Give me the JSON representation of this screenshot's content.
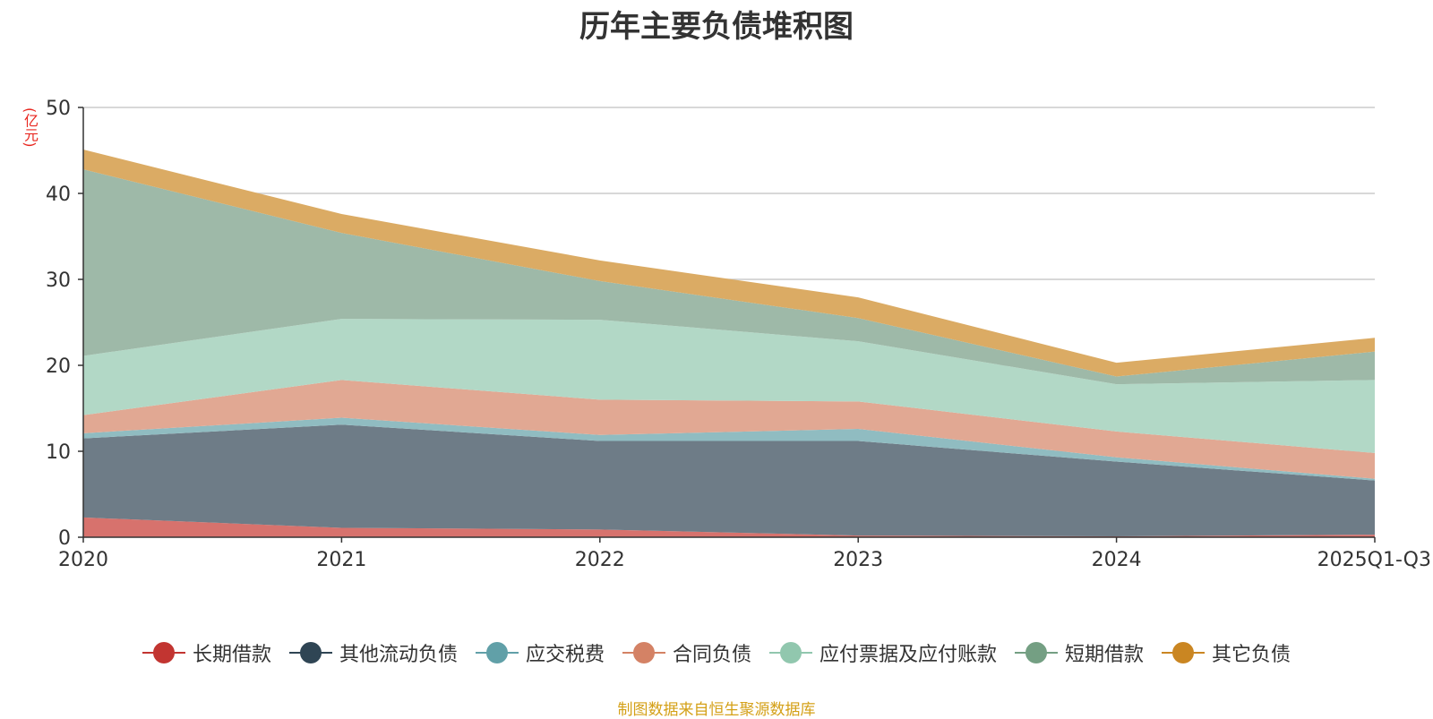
{
  "chart_data": {
    "type": "area",
    "stacked": true,
    "title": "历年主要负债堆积图",
    "ylabel": "(亿元)",
    "xlabel": "",
    "ylim": [
      0,
      50
    ],
    "yticks": [
      0,
      10,
      20,
      30,
      40,
      50
    ],
    "categories": [
      "2020",
      "2021",
      "2022",
      "2023",
      "2024",
      "2025Q1-Q3"
    ],
    "series": [
      {
        "name": "长期借款",
        "color": "#c23531",
        "fill": "#d7726d",
        "values": [
          2.3,
          1.1,
          0.9,
          0.2,
          0.1,
          0.3
        ]
      },
      {
        "name": "其他流动负债",
        "color": "#2f4554",
        "fill": "#6e7c87",
        "values": [
          9.2,
          12.0,
          10.3,
          11.0,
          8.7,
          6.3
        ]
      },
      {
        "name": "应交税费",
        "color": "#61a0a8",
        "fill": "#90bcc1",
        "values": [
          0.6,
          0.8,
          0.7,
          1.4,
          0.5,
          0.2
        ]
      },
      {
        "name": "合同负债",
        "color": "#d48265",
        "fill": "#e1a893",
        "values": [
          2.1,
          4.4,
          4.1,
          3.2,
          3.0,
          3.0
        ]
      },
      {
        "name": "应付票据及应付账款",
        "color": "#91c7ae",
        "fill": "#b2d8c6",
        "values": [
          6.9,
          7.1,
          9.3,
          7.0,
          5.5,
          8.5
        ]
      },
      {
        "name": "短期借款",
        "color": "#749f83",
        "fill": "#9eb9a8",
        "values": [
          21.7,
          10.0,
          4.5,
          2.7,
          0.9,
          3.3
        ]
      },
      {
        "name": "其它负债",
        "color": "#ca8622",
        "fill": "#dbab64",
        "values": [
          2.3,
          2.2,
          2.4,
          2.4,
          1.6,
          1.6
        ]
      }
    ],
    "legend_position": "bottom",
    "grid": true
  },
  "source_note": "制图数据来自恒生聚源数据库"
}
